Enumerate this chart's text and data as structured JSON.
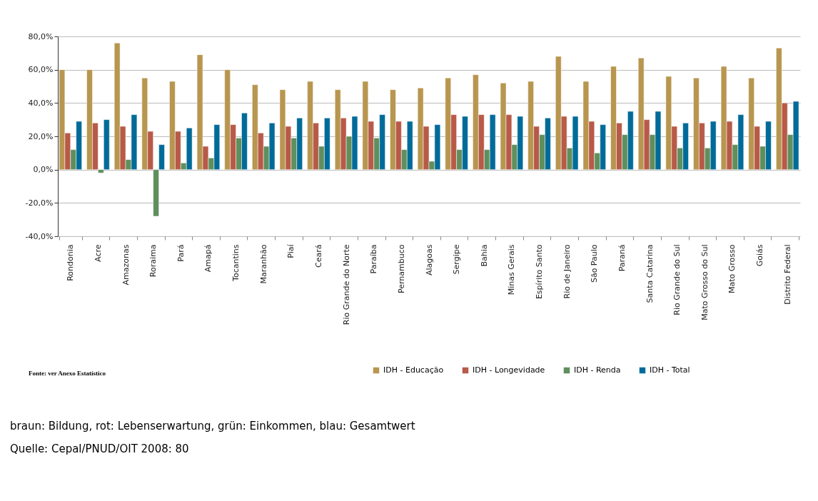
{
  "chart_data": {
    "type": "bar",
    "categories": [
      "Rondonia",
      "Acre",
      "Amazonas",
      "Roraima",
      "Pará",
      "Amapá",
      "Tocantins",
      "Maranhão",
      "Piaí",
      "Ceará",
      "Rio Grande do Norte",
      "Paraíba",
      "Pernambuco",
      "Alagoas",
      "Sergipe",
      "Bahia",
      "Minas Gerais",
      "Espírito Santo",
      "Rio de Janeiro",
      "São Paulo",
      "Paraná",
      "Santa Catarina",
      "Rio Grande do Sul",
      "Mato Grosso do Sul",
      "Mato Grosso",
      "Goiás",
      "Distrito Federal"
    ],
    "series": [
      {
        "name": "IDH - Educação",
        "color": "#b8964f",
        "values": [
          60,
          60,
          76,
          55,
          53,
          69,
          60,
          51,
          48,
          53,
          48,
          53,
          48,
          49,
          55,
          57,
          52,
          53,
          68,
          53,
          62,
          67,
          56,
          55,
          62,
          55,
          73
        ]
      },
      {
        "name": "IDH - Longevidade",
        "color": "#b85a48",
        "values": [
          22,
          28,
          26,
          23,
          23,
          14,
          27,
          22,
          26,
          28,
          31,
          29,
          29,
          26,
          33,
          33,
          33,
          26,
          32,
          29,
          28,
          30,
          26,
          28,
          29,
          26,
          40
        ]
      },
      {
        "name": "IDH - Renda",
        "color": "#5f8f5c",
        "values": [
          12,
          -2,
          6,
          -28,
          4,
          7,
          19,
          14,
          19,
          14,
          20,
          19,
          12,
          5,
          12,
          12,
          15,
          21,
          13,
          10,
          21,
          21,
          13,
          13,
          15,
          14,
          21
        ]
      },
      {
        "name": "IDH - Total",
        "color": "#006b99",
        "values": [
          29,
          30,
          33,
          15,
          25,
          27,
          34,
          28,
          31,
          31,
          32,
          33,
          29,
          27,
          32,
          33,
          32,
          31,
          32,
          27,
          35,
          35,
          28,
          29,
          33,
          29,
          41
        ]
      }
    ],
    "ylim": [
      -40,
      80
    ],
    "yticks": [
      {
        "value": -40,
        "label": "-40,0%"
      },
      {
        "value": -20,
        "label": "-20,0%"
      },
      {
        "value": 0,
        "label": "0,0%"
      },
      {
        "value": 20,
        "label": "20,0%"
      },
      {
        "value": 40,
        "label": "40,0%"
      },
      {
        "value": 60,
        "label": "60,0%"
      },
      {
        "value": 80,
        "label": "80,0%"
      }
    ],
    "grid": "y",
    "legend": "bottom right",
    "annotations": [
      "Fonte: ver Anexo Estatístico",
      "braun: Bildung, rot: Lebenserwartung, grün: Einkommen, blau: Gesamtwert",
      "Quelle: Cepal/PNUD/OIT 2008: 80"
    ]
  }
}
